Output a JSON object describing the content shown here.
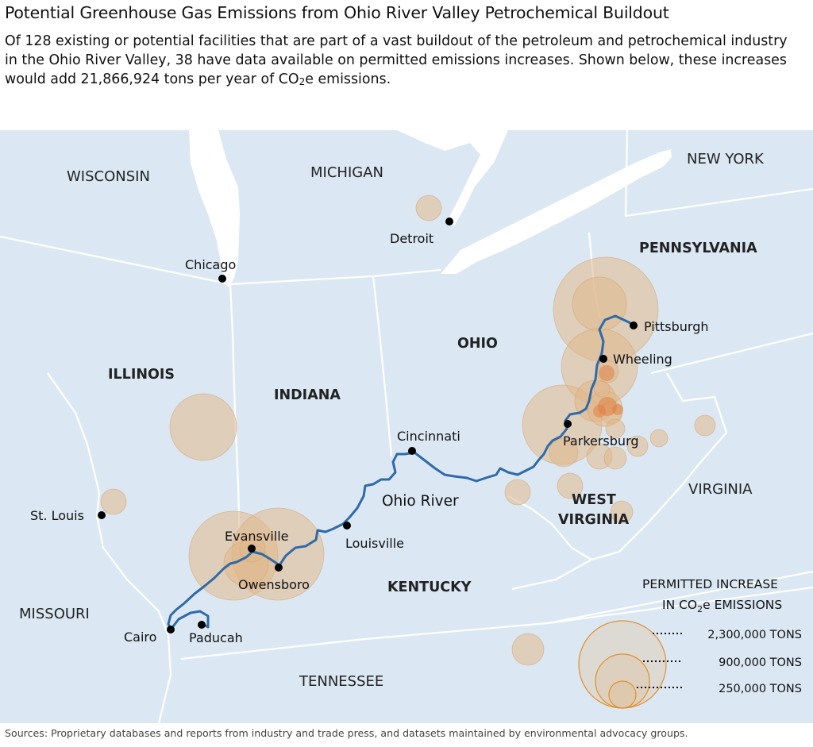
{
  "title": "Potential Greenhouse Gas Emissions from Ohio River Valley Petrochemical Buildout",
  "subtitle": {
    "text": "Of 128 existing or potential facilities that are part of a vast buildout of the petroleum and petrochemical industry in the Ohio River Valley, 38 have data available on permitted emissions increases. Shown below, these increases would add 21,866,924 tons per year of CO",
    "sub": "2",
    "tail": "e emissions."
  },
  "states": {
    "wisconsin": "WISCONSIN",
    "michigan": "MICHIGAN",
    "new_york": "NEW YORK",
    "pennsylvania": "PENNSYLVANIA",
    "ohio": "OHIO",
    "illinois": "ILLINOIS",
    "indiana": "INDIANA",
    "virginia": "VIRGINIA",
    "west_virginia_1": "WEST",
    "west_virginia_2": "VIRGINIA",
    "kentucky": "KENTUCKY",
    "missouri": "MISSOURI",
    "tennessee": "TENNESSEE"
  },
  "cities": {
    "detroit": "Detroit",
    "chicago": "Chicago",
    "pittsburgh": "Pittsburgh",
    "wheeling": "Wheeling",
    "parkersburg": "Parkersburg",
    "cincinnati": "Cincinnati",
    "st_louis": "St. Louis",
    "evansville": "Evansville",
    "louisville": "Louisville",
    "owensboro": "Owensboro",
    "cairo": "Cairo",
    "paducah": "Paducah"
  },
  "river_label": "Ohio River",
  "legend": {
    "title_1": "PERMITTED INCREASE",
    "title_2_pre": "IN CO",
    "title_2_sub": "2",
    "title_2_post": "e EMISSIONS",
    "large": "2,300,000 TONS",
    "medium": "900,000 TONS",
    "small": "250,000 TONS"
  },
  "source": "Sources: Proprietary databases and reports from industry and trade press, and datasets maintained by environmental advocacy groups.",
  "colors": {
    "land": "#ffffff",
    "water": "#dbe8f4",
    "border": "#ffffff",
    "river": "#2f6aa8",
    "bubble_fill": "#e0b88a",
    "bubble_stroke": "#d9a066",
    "legend_stroke": "#e0902a"
  }
}
